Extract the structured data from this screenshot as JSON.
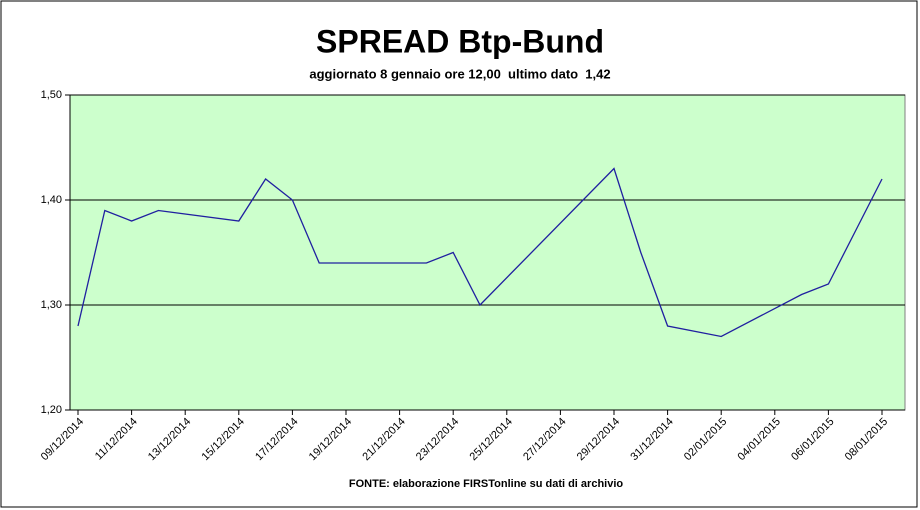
{
  "chart_data": {
    "type": "line",
    "title": "SPREAD Btp-Bund",
    "subtitle": "aggiornato 8 gennaio ore 12,00  ultimo dato  1,42",
    "source": "FONTE: elaborazione FIRSTonline su dati di archivio",
    "x": [
      "09/12/2014",
      "10/12/2014",
      "11/12/2014",
      "12/12/2014",
      "15/12/2014",
      "16/12/2014",
      "17/12/2014",
      "18/12/2014",
      "19/12/2014",
      "22/12/2014",
      "23/12/2014",
      "24/12/2014",
      "29/12/2014",
      "30/12/2014",
      "31/12/2014",
      "02/01/2015",
      "05/01/2015",
      "06/01/2015",
      "07/01/2015",
      "08/01/2015"
    ],
    "series": [
      {
        "name": "Spread",
        "color": "#2020a0",
        "values": [
          1.28,
          1.39,
          1.38,
          1.39,
          1.38,
          1.42,
          1.4,
          1.34,
          1.34,
          1.34,
          1.35,
          1.3,
          1.43,
          1.35,
          1.28,
          1.27,
          1.31,
          1.32,
          1.37,
          1.42
        ]
      }
    ],
    "xticks": [
      "09/12/2014",
      "11/12/2014",
      "13/12/2014",
      "15/12/2014",
      "17/12/2014",
      "19/12/2014",
      "21/12/2014",
      "23/12/2014",
      "25/12/2014",
      "27/12/2014",
      "29/12/2014",
      "31/12/2014",
      "02/01/2015",
      "04/01/2015",
      "06/01/2015",
      "08/01/2015"
    ],
    "ylim": [
      1.2,
      1.5
    ],
    "yticks": [
      {
        "value": 1.2,
        "label": "1,20"
      },
      {
        "value": 1.3,
        "label": "1,30"
      },
      {
        "value": 1.4,
        "label": "1,40"
      },
      {
        "value": 1.5,
        "label": "1,50"
      }
    ],
    "grid": true,
    "plot_background": "#ccffcc"
  }
}
